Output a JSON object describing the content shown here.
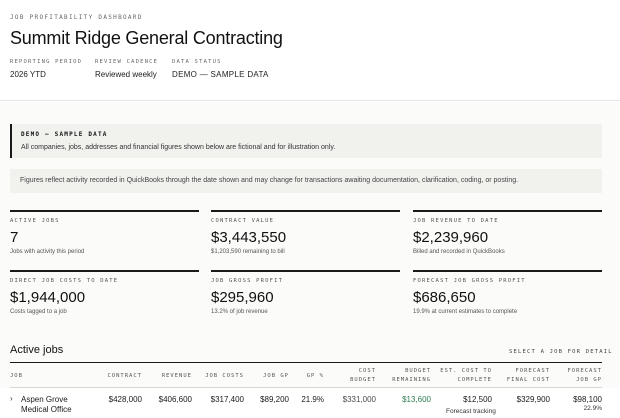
{
  "header": {
    "eyebrow": "JOB PROFITABILITY DASHBOARD",
    "title": "Summit Ridge General Contracting",
    "meta": [
      {
        "label": "REPORTING PERIOD",
        "value": "2026 YTD"
      },
      {
        "label": "REVIEW CADENCE",
        "value": "Reviewed weekly"
      },
      {
        "label": "DATA STATUS",
        "value": "DEMO — SAMPLE DATA"
      }
    ]
  },
  "banner": {
    "title": "DEMO — SAMPLE DATA",
    "body": "All companies, jobs, addresses and financial figures shown below are fictional and for illustration only."
  },
  "note": "Figures reflect activity recorded in QuickBooks through the date shown and may change for transactions awaiting documentation, clarification, coding, or posting.",
  "kpis": [
    {
      "label": "ACTIVE JOBS",
      "value": "7",
      "sub": "Jobs with activity this period"
    },
    {
      "label": "CONTRACT VALUE",
      "value": "$3,443,550",
      "sub": "$1,203,590 remaining to bill"
    },
    {
      "label": "JOB REVENUE TO DATE",
      "value": "$2,239,960",
      "sub": "Billed and recorded in QuickBooks"
    },
    {
      "label": "DIRECT JOB COSTS TO DATE",
      "value": "$1,944,000",
      "sub": "Costs tagged to a job"
    },
    {
      "label": "JOB GROSS PROFIT",
      "value": "$295,960",
      "sub": "13.2% of job revenue"
    },
    {
      "label": "FORECAST JOB GROSS PROFIT",
      "value": "$686,650",
      "sub": "19.9% at current estimates to complete"
    }
  ],
  "jobs_section": {
    "title": "Active jobs",
    "link": "SELECT A JOB FOR DETAIL",
    "columns": {
      "job": "JOB",
      "contract": "CONTRACT",
      "revenue": "REVENUE",
      "job_costs": "JOB COSTS",
      "job_gp": "JOB GP",
      "gp_pct": "GP %",
      "cost_budget_1": "COST",
      "cost_budget_2": "BUDGET",
      "budget_remaining_1": "BUDGET",
      "budget_remaining_2": "REMAINING",
      "est_cost_1": "EST. COST TO",
      "est_cost_2": "COMPLETE",
      "forecast_final_1": "FORECAST",
      "forecast_final_2": "FINAL COST",
      "forecast_gp_1": "FORECAST",
      "forecast_gp_2": "JOB GP"
    },
    "rows": [
      {
        "expand_icon": "chevron-right-icon",
        "job_line1": "Aspen Grove",
        "job_line2": "Medical Office",
        "contract": "$428,000",
        "revenue": "$406,600",
        "job_costs": "$317,400",
        "job_gp": "$89,200",
        "gp_pct": "21.9%",
        "cost_budget": "$331,000",
        "budget_remaining": "$13,600",
        "est_cost": "$12,500",
        "est_cost_note": "Forecast tracking",
        "forecast_final": "$329,900",
        "forecast_gp": "$98,100",
        "forecast_gp_pct": "22.9%"
      }
    ]
  },
  "colors": {
    "accent": "#1a1a1a",
    "positive": "#2f7d4f",
    "panel": "#f1f2ee"
  }
}
